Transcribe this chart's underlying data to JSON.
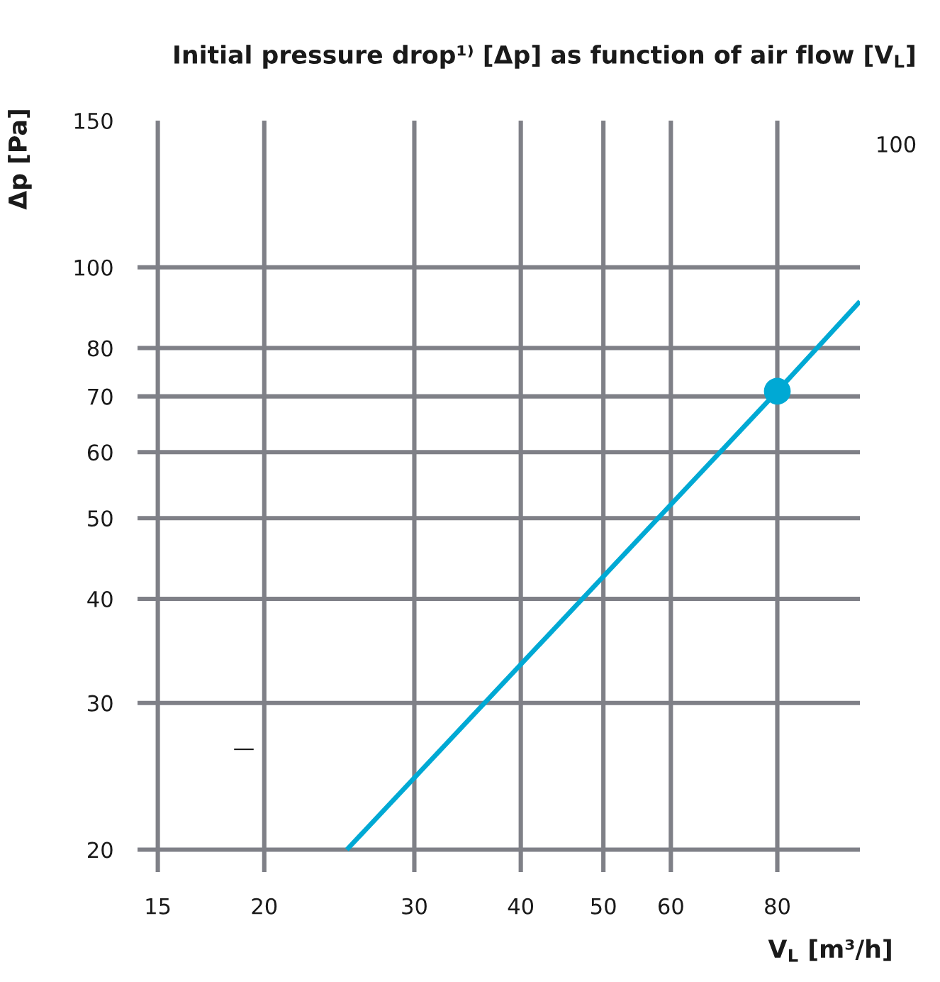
{
  "chart_data": {
    "type": "line",
    "title": "Initial pressure drop¹⁾ [Δp] as function of air flow [V$_{L}$]",
    "xlabel": "V$_{L}$ [m³/h]",
    "ylabel": "Δp [Pa]",
    "log": "xy",
    "xlim": [
      14.2,
      100
    ],
    "xticks": [
      15,
      20,
      30,
      40,
      50,
      60,
      80
    ],
    "ylim": [
      18.8,
      150
    ],
    "yticks": [
      20,
      30,
      40,
      50,
      60,
      70,
      80,
      100,
      150
    ],
    "grid": true,
    "series": [
      {
        "color": "#00a9d4",
        "x": [
          25,
          80,
          100
        ],
        "values": [
          20,
          71,
          91
        ]
      },
      {
        "type": "scatter",
        "color": "#00a9d4",
        "x": [
          80
        ],
        "values": [
          71
        ],
        "marker": "circle"
      }
    ],
    "annotations": [
      "100",
      "—"
    ]
  }
}
